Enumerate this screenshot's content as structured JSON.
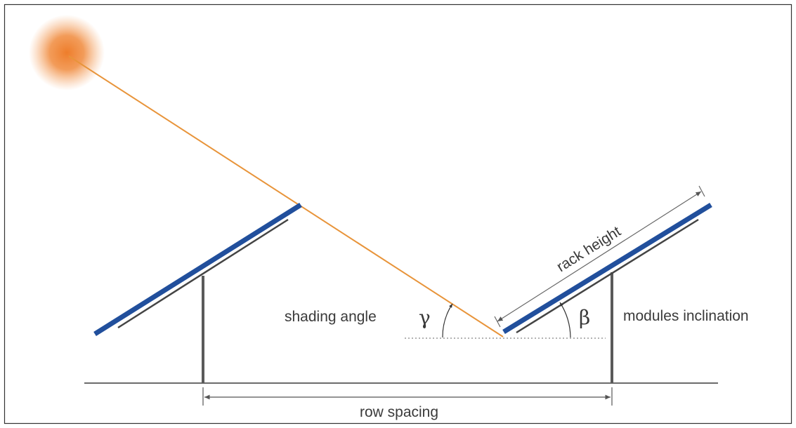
{
  "labels": {
    "shading_angle": "shading angle",
    "gamma": "γ",
    "beta": "β",
    "modules_inclination": "modules inclination",
    "rack_height": "rack height",
    "row_spacing": "row spacing"
  },
  "colors": {
    "sun": "#ee7d2b",
    "sun_ray": "#e8943a",
    "module": "#214f9c",
    "rack": "#555555",
    "ground": "#6b6b6b",
    "dimension": "#555555",
    "text": "#3a3a3a",
    "border": "#333333"
  }
}
